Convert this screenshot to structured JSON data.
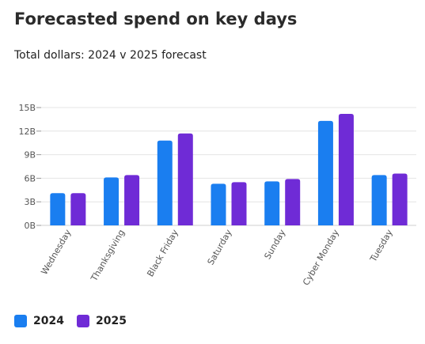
{
  "title": "Forecasted spend on key days",
  "subtitle": "Total dollars: 2024 v 2025 forecast",
  "chart_data": {
    "type": "bar",
    "categories": [
      "Wednesday",
      "Thanksgiving",
      "Black Friday",
      "Saturday",
      "Sunday",
      "Cyber Monday",
      "Tuesday"
    ],
    "series": [
      {
        "name": "2024",
        "color": "#1a7ef0",
        "values": [
          4.1,
          6.1,
          10.8,
          5.3,
          5.6,
          13.3,
          6.4
        ]
      },
      {
        "name": "2025",
        "color": "#6f2bd6",
        "values": [
          4.1,
          6.4,
          11.7,
          5.5,
          5.9,
          14.2,
          6.6
        ]
      }
    ],
    "y_ticks": [
      {
        "value": 0,
        "label": "0B"
      },
      {
        "value": 3,
        "label": "3B"
      },
      {
        "value": 6,
        "label": "6B"
      },
      {
        "value": 9,
        "label": "9B"
      },
      {
        "value": 12,
        "label": "12B"
      },
      {
        "value": 15,
        "label": "15B"
      }
    ],
    "ylim": [
      0,
      15
    ],
    "grid": true,
    "legend": "bottom-left"
  }
}
